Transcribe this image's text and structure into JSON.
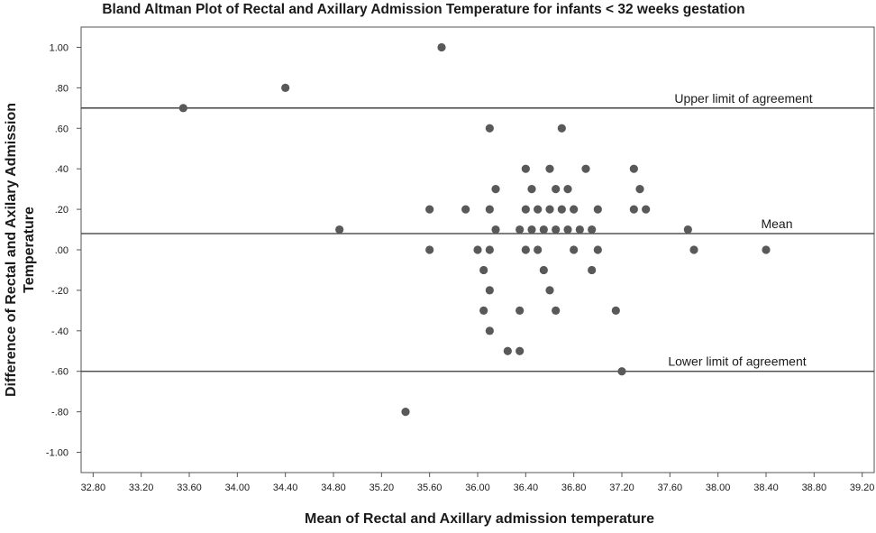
{
  "chart_data": {
    "type": "scatter",
    "title": "Bland Altman Plot of Rectal and Axillary Admission Temperature for infants < 32 weeks gestation",
    "xlabel": "Mean of Rectal and Axillary admission temperature",
    "ylabel_lines": [
      "Difference of Rectal and Axilary Admission",
      "Temperature"
    ],
    "xlim": [
      32.7,
      39.3
    ],
    "ylim": [
      -1.1,
      1.1
    ],
    "x_ticks": [
      "32.80",
      "33.20",
      "33.60",
      "34.00",
      "34.40",
      "34.80",
      "35.20",
      "35.60",
      "36.00",
      "36.40",
      "36.80",
      "37.20",
      "37.60",
      "38.00",
      "38.40",
      "38.80",
      "39.20"
    ],
    "x_tick_values": [
      32.8,
      33.2,
      33.6,
      34.0,
      34.4,
      34.8,
      35.2,
      35.6,
      36.0,
      36.4,
      36.8,
      37.2,
      37.6,
      38.0,
      38.4,
      38.8,
      39.2
    ],
    "y_ticks": [
      "1.00",
      ".80",
      ".60",
      ".40",
      ".20",
      ".00",
      "-.20",
      "-.40",
      "-.60",
      "-.80",
      "-1.00"
    ],
    "y_tick_values": [
      1.0,
      0.8,
      0.6,
      0.4,
      0.2,
      0.0,
      -0.2,
      -0.4,
      -0.6,
      -0.8,
      -1.0
    ],
    "grid": false,
    "reference_lines": [
      {
        "label": "Upper limit of agreement",
        "y": 0.7
      },
      {
        "label": "Mean",
        "y": 0.08
      },
      {
        "label": "Lower limit of agreement",
        "y": -0.6
      }
    ],
    "point_color": "#595959",
    "line_color": "#333333",
    "points": [
      [
        33.55,
        0.7
      ],
      [
        34.4,
        0.8
      ],
      [
        35.7,
        1.0
      ],
      [
        34.85,
        0.1
      ],
      [
        35.4,
        -0.8
      ],
      [
        35.6,
        0.2
      ],
      [
        35.6,
        0.0
      ],
      [
        35.9,
        0.2
      ],
      [
        36.0,
        0.0
      ],
      [
        36.05,
        -0.1
      ],
      [
        36.05,
        -0.3
      ],
      [
        36.1,
        0.6
      ],
      [
        36.1,
        0.2
      ],
      [
        36.1,
        0.0
      ],
      [
        36.1,
        -0.2
      ],
      [
        36.1,
        -0.4
      ],
      [
        36.15,
        0.3
      ],
      [
        36.15,
        0.1
      ],
      [
        36.25,
        -0.5
      ],
      [
        36.35,
        0.1
      ],
      [
        36.35,
        -0.3
      ],
      [
        36.35,
        -0.5
      ],
      [
        36.4,
        0.4
      ],
      [
        36.4,
        0.2
      ],
      [
        36.4,
        0.0
      ],
      [
        36.45,
        0.3
      ],
      [
        36.45,
        0.1
      ],
      [
        36.5,
        0.2
      ],
      [
        36.5,
        0.0
      ],
      [
        36.55,
        0.1
      ],
      [
        36.55,
        -0.1
      ],
      [
        36.6,
        0.4
      ],
      [
        36.6,
        0.2
      ],
      [
        36.6,
        -0.2
      ],
      [
        36.65,
        0.3
      ],
      [
        36.65,
        0.1
      ],
      [
        36.65,
        -0.3
      ],
      [
        36.7,
        0.6
      ],
      [
        36.7,
        0.2
      ],
      [
        36.75,
        0.3
      ],
      [
        36.75,
        0.1
      ],
      [
        36.8,
        0.2
      ],
      [
        36.8,
        0.0
      ],
      [
        36.85,
        0.1
      ],
      [
        36.9,
        0.4
      ],
      [
        36.95,
        0.1
      ],
      [
        36.95,
        -0.1
      ],
      [
        37.0,
        0.2
      ],
      [
        37.0,
        0.0
      ],
      [
        37.15,
        -0.3
      ],
      [
        37.2,
        -0.6
      ],
      [
        37.3,
        0.4
      ],
      [
        37.3,
        0.2
      ],
      [
        37.35,
        0.3
      ],
      [
        37.4,
        0.2
      ],
      [
        37.75,
        0.1
      ],
      [
        37.8,
        0.0
      ],
      [
        38.4,
        0.0
      ]
    ]
  }
}
